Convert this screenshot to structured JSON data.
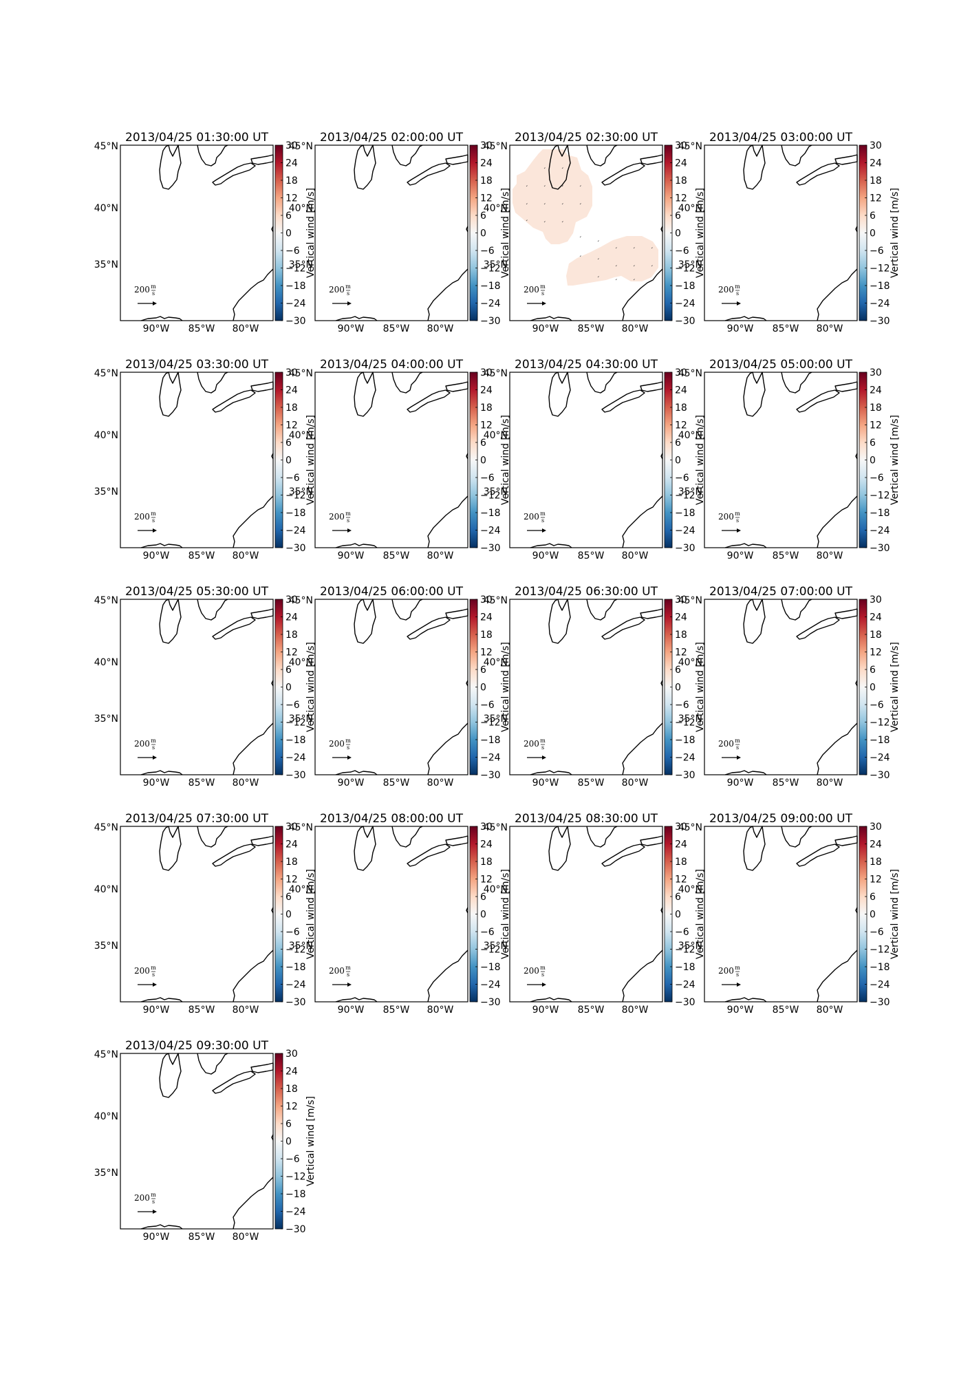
{
  "figure": {
    "colorbar": {
      "ticks": [
        "30",
        "24",
        "18",
        "12",
        "6",
        "0",
        "−6",
        "−12",
        "−18",
        "−24",
        "−30"
      ],
      "label": "Vertical wind [m/s]",
      "colors": [
        "#67001f",
        "#b2182b",
        "#d6604d",
        "#f4a582",
        "#fddbc7",
        "#f7f7f7",
        "#d1e5f0",
        "#92c5de",
        "#4393c3",
        "#2166ac",
        "#053061"
      ]
    },
    "map": {
      "lat_ticks": [
        "45°N",
        "40°N",
        "35°N"
      ],
      "lon_ticks": [
        "90°W",
        "85°W",
        "80°W"
      ],
      "quiver_key_value": "200",
      "quiver_key_unit_num": "m",
      "quiver_key_unit_den": "s"
    },
    "panels": [
      {
        "title": "2013/04/25 01:30:00 UT",
        "has_data": false
      },
      {
        "title": "2013/04/25 02:00:00 UT",
        "has_data": false
      },
      {
        "title": "2013/04/25 02:30:00 UT",
        "has_data": true,
        "data_value_color": "#fbe6da"
      },
      {
        "title": "2013/04/25 03:00:00 UT",
        "has_data": false
      },
      {
        "title": "2013/04/25 03:30:00 UT",
        "has_data": false
      },
      {
        "title": "2013/04/25 04:00:00 UT",
        "has_data": false
      },
      {
        "title": "2013/04/25 04:30:00 UT",
        "has_data": false
      },
      {
        "title": "2013/04/25 05:00:00 UT",
        "has_data": false
      },
      {
        "title": "2013/04/25 05:30:00 UT",
        "has_data": false
      },
      {
        "title": "2013/04/25 06:00:00 UT",
        "has_data": false
      },
      {
        "title": "2013/04/25 06:30:00 UT",
        "has_data": false
      },
      {
        "title": "2013/04/25 07:00:00 UT",
        "has_data": false
      },
      {
        "title": "2013/04/25 07:30:00 UT",
        "has_data": false
      },
      {
        "title": "2013/04/25 08:00:00 UT",
        "has_data": false
      },
      {
        "title": "2013/04/25 08:30:00 UT",
        "has_data": false
      },
      {
        "title": "2013/04/25 09:00:00 UT",
        "has_data": false
      },
      {
        "title": "2013/04/25 09:30:00 UT",
        "has_data": false
      }
    ]
  }
}
